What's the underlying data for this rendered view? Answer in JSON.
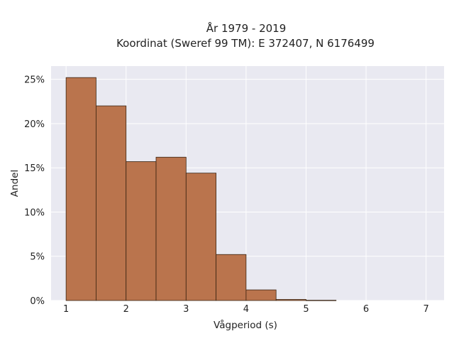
{
  "chart_data": {
    "type": "bar",
    "title_line1": "År 1979 - 2019",
    "title_line2": "Koordinat (Sweref 99 TM): E 372407, N 6176499",
    "xlabel": "Vågperiod (s)",
    "ylabel": "Andel",
    "xlim": [
      0.75,
      7.3
    ],
    "ylim": [
      0,
      26.5
    ],
    "x_ticks": [
      1,
      2,
      3,
      4,
      5,
      6,
      7
    ],
    "x_tick_labels": [
      "1",
      "2",
      "3",
      "4",
      "5",
      "6",
      "7"
    ],
    "y_ticks": [
      0,
      5,
      10,
      15,
      20,
      25
    ],
    "y_tick_labels": [
      "0%",
      "5%",
      "10%",
      "15%",
      "20%",
      "25%"
    ],
    "grid": true,
    "bin_width": 0.5,
    "bins": [
      {
        "x0": 1.0,
        "x1": 1.5,
        "value": 25.2
      },
      {
        "x0": 1.5,
        "x1": 2.0,
        "value": 22.0
      },
      {
        "x0": 2.0,
        "x1": 2.5,
        "value": 15.7
      },
      {
        "x0": 2.5,
        "x1": 3.0,
        "value": 16.2
      },
      {
        "x0": 3.0,
        "x1": 3.5,
        "value": 14.4
      },
      {
        "x0": 3.5,
        "x1": 4.0,
        "value": 5.2
      },
      {
        "x0": 4.0,
        "x1": 4.5,
        "value": 1.2
      },
      {
        "x0": 4.5,
        "x1": 5.0,
        "value": 0.12
      },
      {
        "x0": 5.0,
        "x1": 5.5,
        "value": 0.03
      }
    ],
    "colors": {
      "bar_fill": "#b5693f",
      "bar_edge": "#3a2412",
      "plot_bg": "#e9e9f1",
      "grid": "#ffffff"
    }
  }
}
